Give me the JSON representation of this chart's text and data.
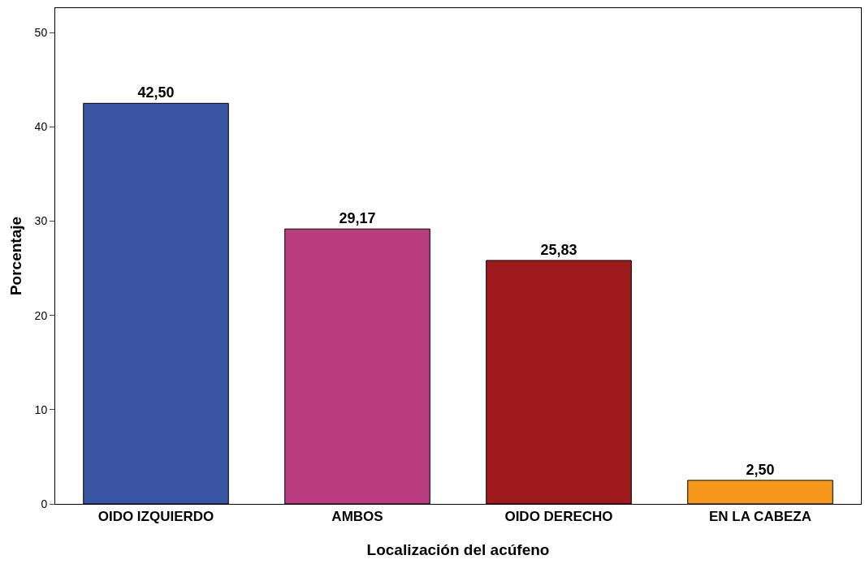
{
  "chart_data": {
    "type": "bar",
    "xlabel": "Localización del acúfeno",
    "ylabel": "Porcentaje",
    "categories": [
      "OIDO IZQUIERDO",
      "AMBOS",
      "OIDO DERECHO",
      "EN LA CABEZA"
    ],
    "values": [
      42.5,
      29.17,
      25.83,
      2.5
    ],
    "colors": [
      "#3a55a4",
      "#b93d80",
      "#9e1a1d",
      "#f7981d"
    ],
    "value_labels": [
      "42,50",
      "29,17",
      "25,83",
      "2,50"
    ],
    "ylim": [
      0,
      52.6
    ],
    "yticks": [
      0,
      10,
      20,
      30,
      40,
      50
    ],
    "legend": false
  }
}
